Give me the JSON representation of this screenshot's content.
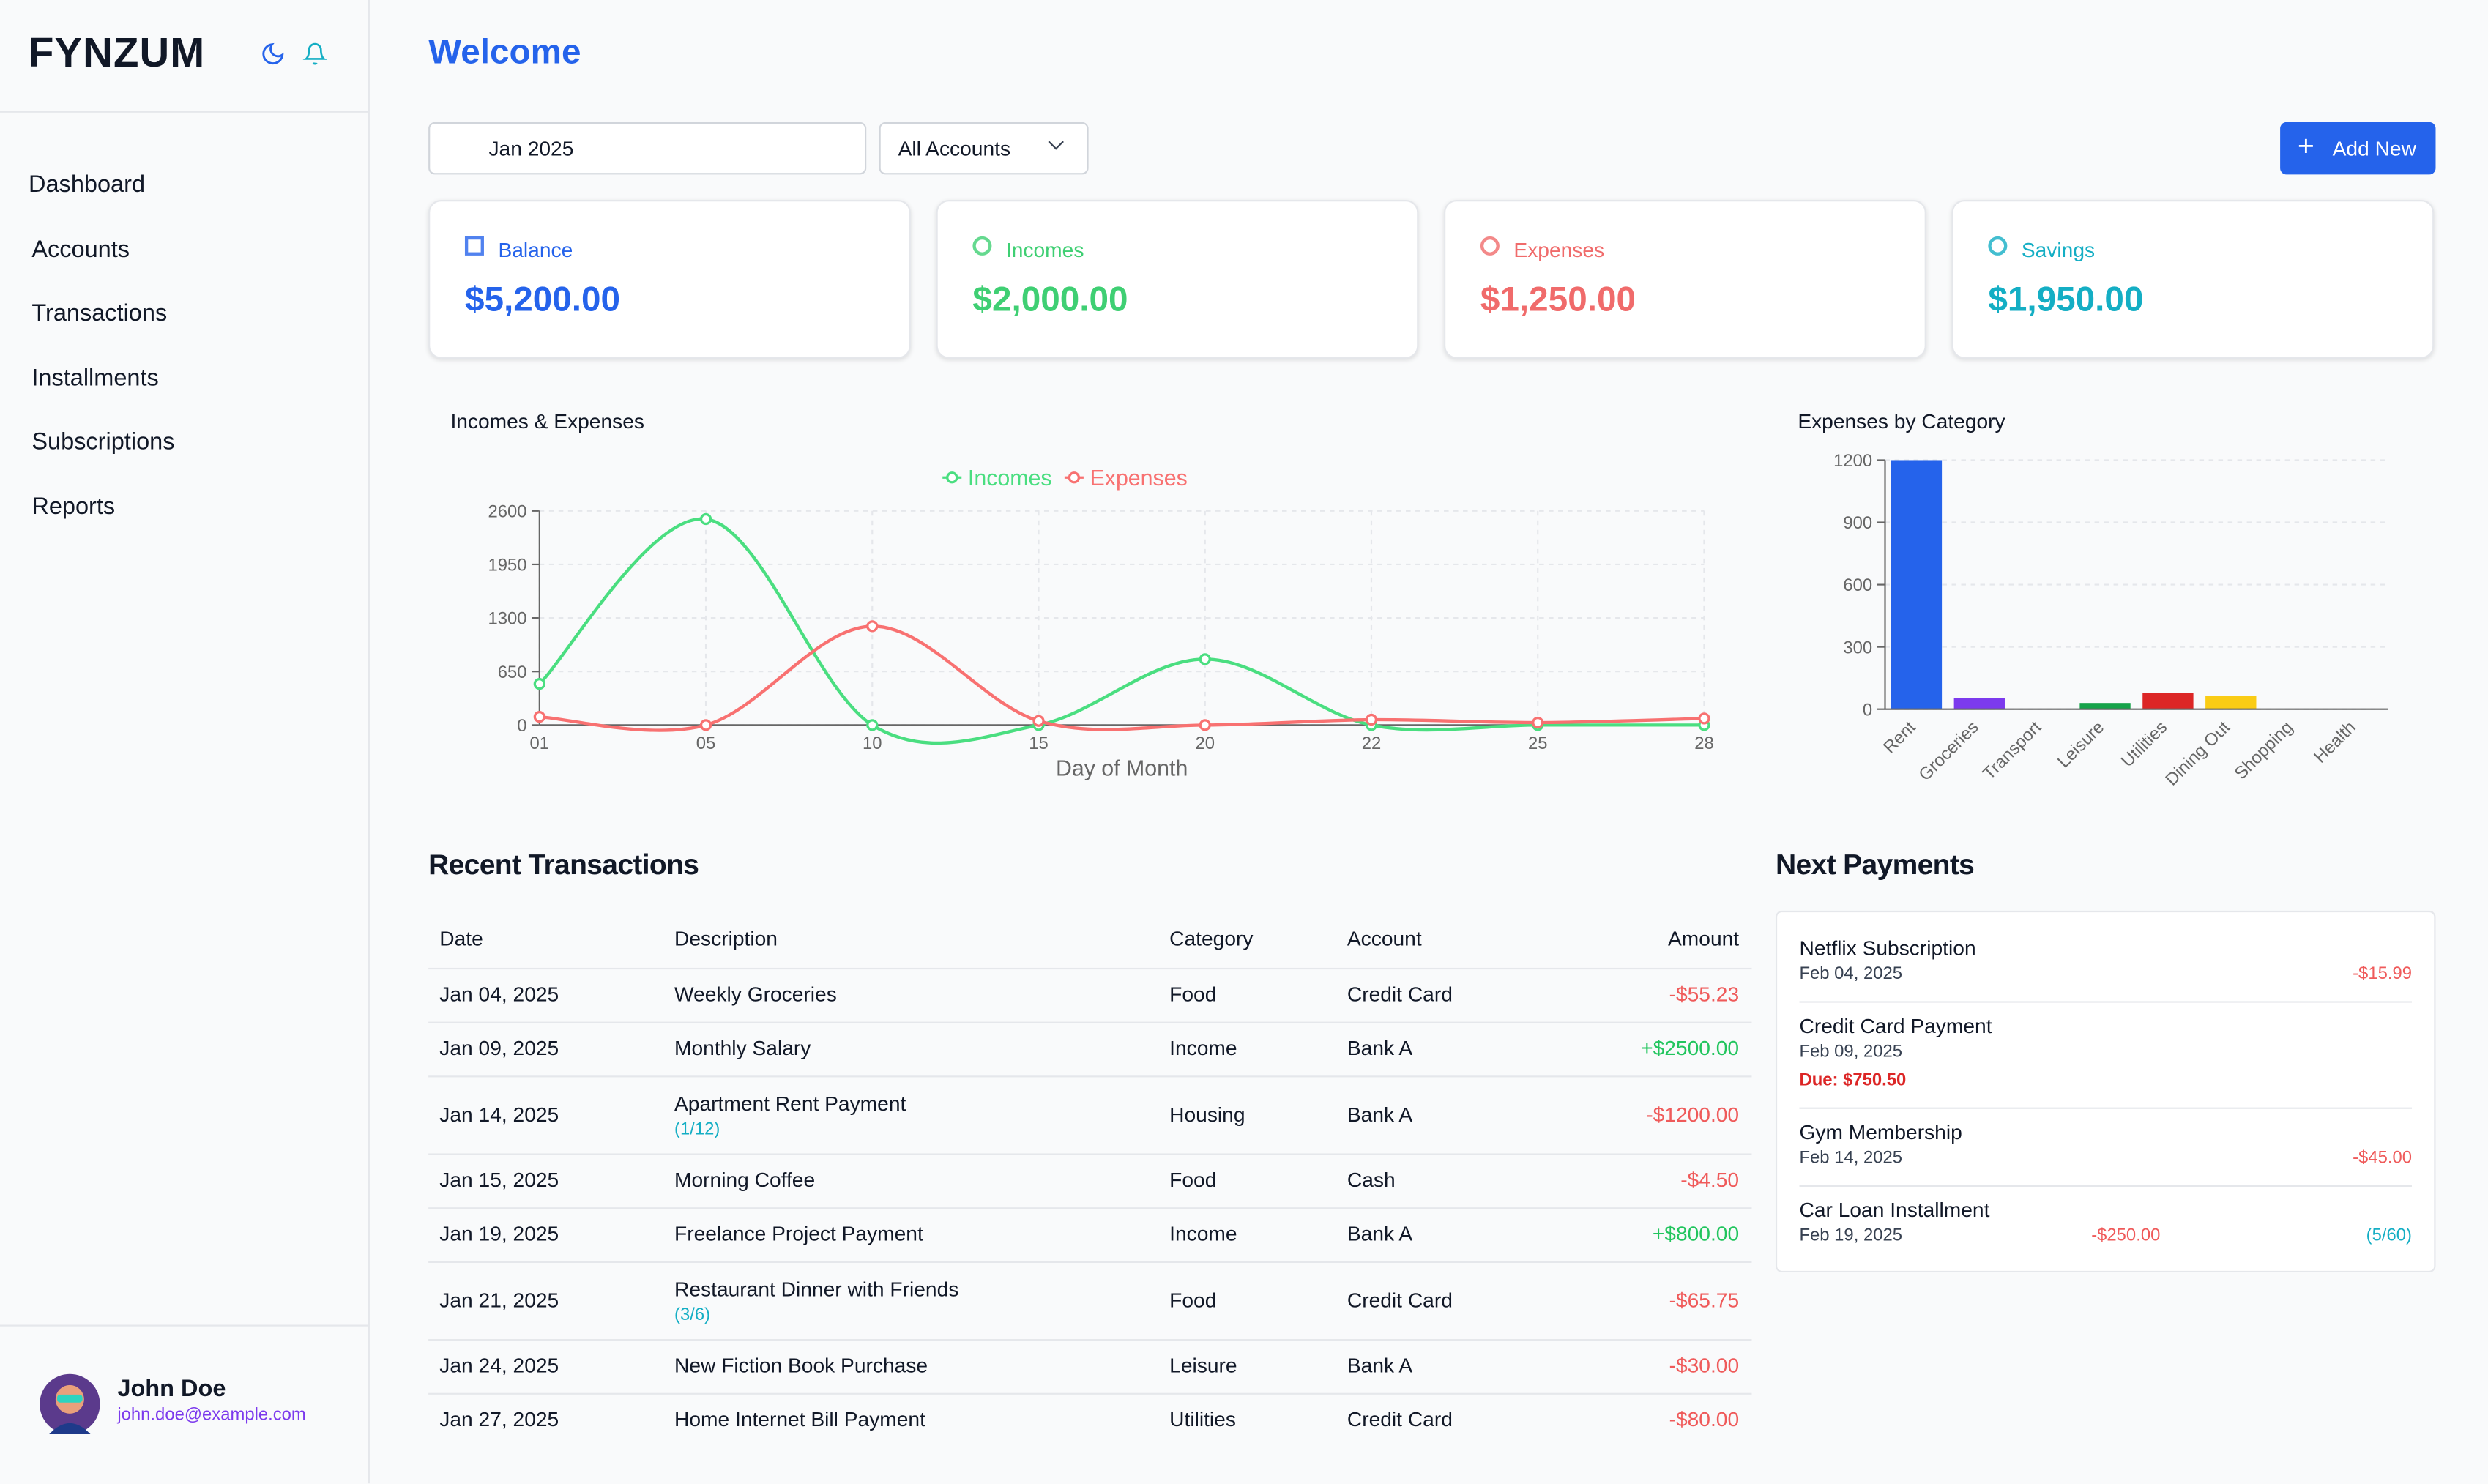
{
  "app": {
    "logo": "FYNZUM"
  },
  "nav": [
    "Dashboard",
    "Accounts",
    "Transactions",
    "Installments",
    "Subscriptions",
    "Reports"
  ],
  "user": {
    "name": "John Doe",
    "email": "john.doe@example.com"
  },
  "header": {
    "title": "Welcome"
  },
  "filters": {
    "month": "Jan 2025",
    "account": "All Accounts",
    "add_button": "Add New"
  },
  "cards": [
    {
      "label": "Balance",
      "value": "$5,200.00",
      "color": "#2563eb"
    },
    {
      "label": "Incomes",
      "value": "$2,000.00",
      "color": "#3fcf73"
    },
    {
      "label": "Expenses",
      "value": "$1,250.00",
      "color": "#f06b6b"
    },
    {
      "label": "Savings",
      "value": "$1,950.00",
      "color": "#14aec4"
    }
  ],
  "chart_data": [
    {
      "type": "line",
      "title": "Incomes & Expenses",
      "x_label": "Day of Month",
      "categories": [
        "01",
        "05",
        "10",
        "15",
        "20",
        "22",
        "25",
        "28"
      ],
      "series": [
        {
          "name": "Incomes",
          "color": "#4ade80",
          "values": [
            500,
            2500,
            0,
            0,
            800,
            0,
            0,
            0
          ]
        },
        {
          "name": "Expenses",
          "color": "#f87171",
          "values": [
            100,
            0,
            1200,
            50,
            0,
            65,
            30,
            80
          ]
        }
      ],
      "ylim": [
        0,
        2600
      ],
      "yticks": [
        0,
        650,
        1300,
        1950,
        2600
      ],
      "grid": true
    },
    {
      "type": "bar",
      "title": "Expenses by Category",
      "categories": [
        "Rent",
        "Groceries",
        "Transport",
        "Leisure",
        "Utilities",
        "Dining Out",
        "Shopping",
        "Health"
      ],
      "values": [
        1200,
        55,
        0,
        30,
        80,
        65,
        0,
        0
      ],
      "colors": [
        "#2563eb",
        "#7c3aed",
        "#0891b2",
        "#16a34a",
        "#dc2626",
        "#facc15",
        "#db2777",
        "#ea580c"
      ],
      "ylim": [
        0,
        1200
      ],
      "yticks": [
        0,
        300,
        600,
        900,
        1200
      ],
      "grid": true
    }
  ],
  "transactions": {
    "title": "Recent Transactions",
    "columns": [
      "Date",
      "Description",
      "Category",
      "Account",
      "Amount"
    ],
    "rows": [
      {
        "date": "Jan 04, 2025",
        "description": "Weekly Groceries",
        "category": "Food",
        "account": "Credit Card",
        "amount": "-$55.23"
      },
      {
        "date": "Jan 09, 2025",
        "description": "Monthly Salary",
        "category": "Income",
        "account": "Bank A",
        "amount": "+$2500.00"
      },
      {
        "date": "Jan 14, 2025",
        "description": "Apartment Rent Payment",
        "note": "(1/12)",
        "category": "Housing",
        "account": "Bank A",
        "amount": "-$1200.00"
      },
      {
        "date": "Jan 15, 2025",
        "description": "Morning Coffee",
        "category": "Food",
        "account": "Cash",
        "amount": "-$4.50"
      },
      {
        "date": "Jan 19, 2025",
        "description": "Freelance Project Payment",
        "category": "Income",
        "account": "Bank A",
        "amount": "+$800.00"
      },
      {
        "date": "Jan 21, 2025",
        "description": "Restaurant Dinner with Friends",
        "note": "(3/6)",
        "category": "Food",
        "account": "Credit Card",
        "amount": "-$65.75"
      },
      {
        "date": "Jan 24, 2025",
        "description": "New Fiction Book Purchase",
        "category": "Leisure",
        "account": "Bank A",
        "amount": "-$30.00"
      },
      {
        "date": "Jan 27, 2025",
        "description": "Home Internet Bill Payment",
        "category": "Utilities",
        "account": "Credit Card",
        "amount": "-$80.00"
      }
    ]
  },
  "next_payments": {
    "title": "Next Payments",
    "items": [
      {
        "name": "Netflix Subscription",
        "date": "Feb 04, 2025",
        "amount": "-$15.99"
      },
      {
        "name": "Credit Card Payment",
        "date": "Feb 09, 2025",
        "due": "Due: $750.50"
      },
      {
        "name": "Gym Membership",
        "date": "Feb 14, 2025",
        "amount": "-$45.00"
      },
      {
        "name": "Car Loan Installment",
        "date": "Feb 19, 2025",
        "amount": "-$250.00",
        "progress": "(5/60)"
      }
    ]
  }
}
